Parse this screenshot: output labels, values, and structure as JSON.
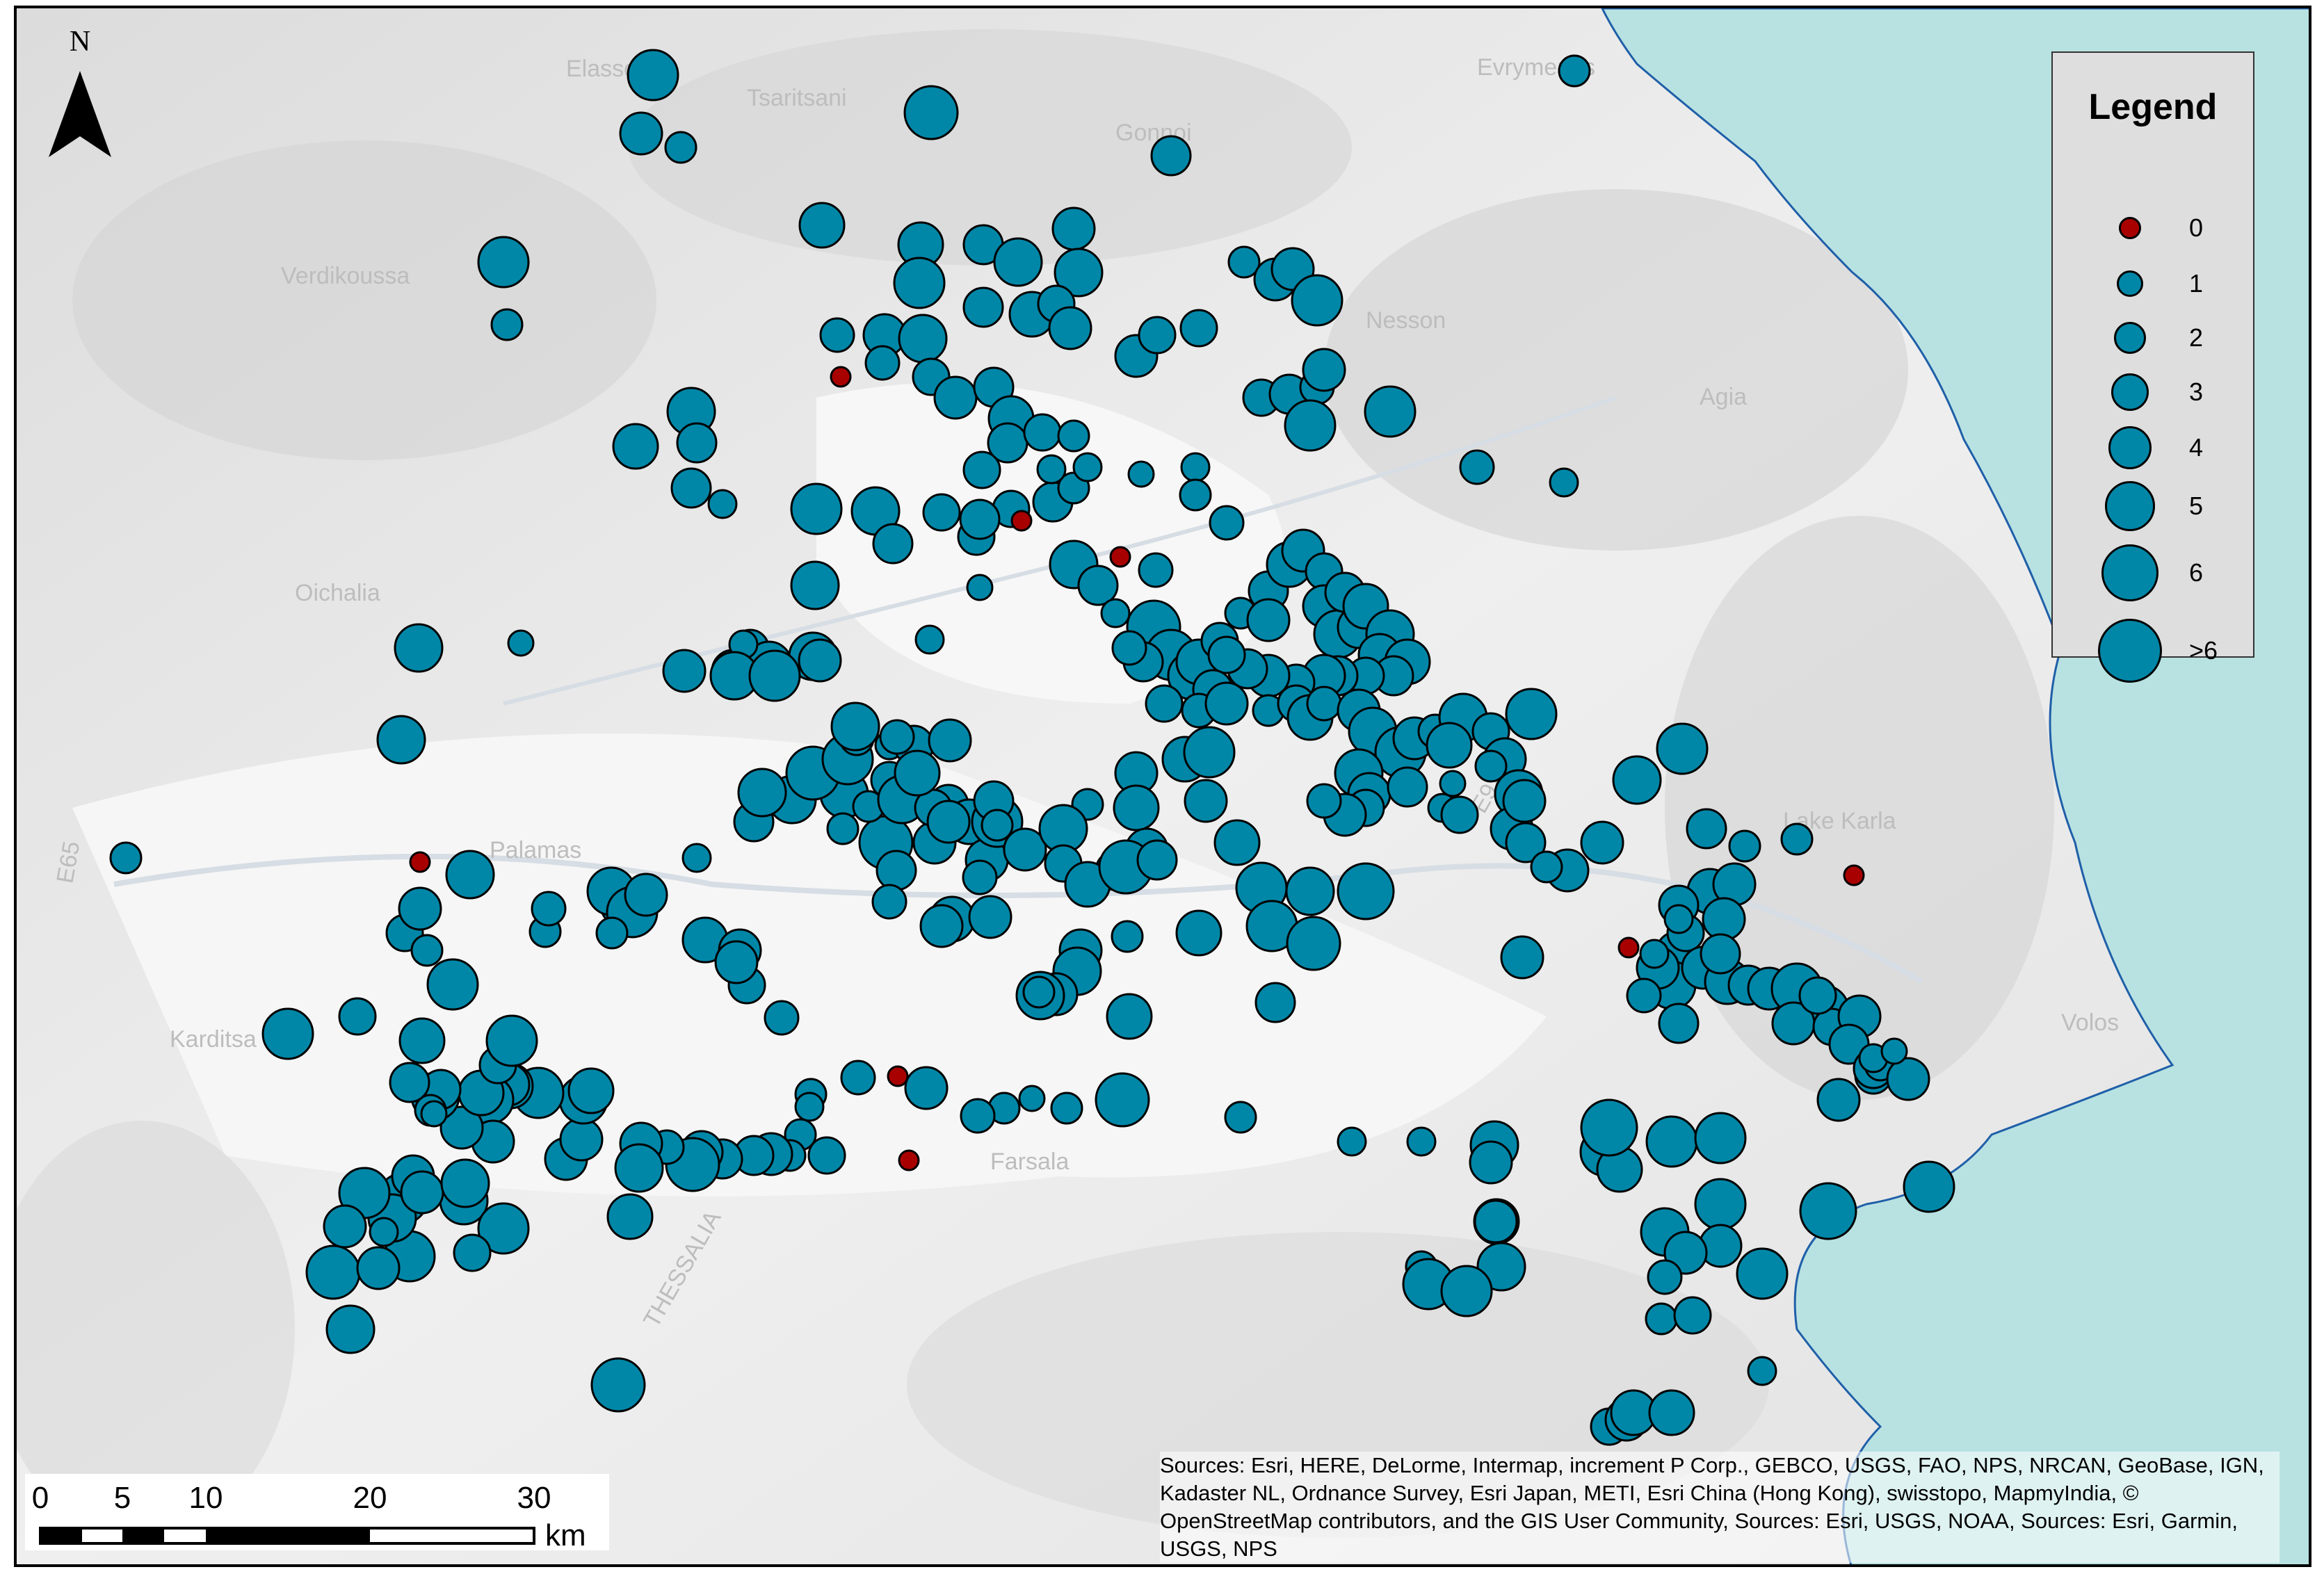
{
  "north_arrow": {
    "letter": "N"
  },
  "legend": {
    "title": "Legend",
    "items": [
      {
        "label": "0",
        "value": 0,
        "color": "#a80000"
      },
      {
        "label": "1",
        "value": 1,
        "color": "#0087a8"
      },
      {
        "label": "2",
        "value": 2,
        "color": "#0087a8"
      },
      {
        "label": "3",
        "value": 3,
        "color": "#0087a8"
      },
      {
        "label": "4",
        "value": 4,
        "color": "#0087a8"
      },
      {
        "label": "5",
        "value": 5,
        "color": "#0087a8"
      },
      {
        "label": "6",
        "value": 6,
        "color": "#0087a8"
      },
      {
        "label": ">6",
        "value": 7,
        "color": "#0087a8"
      }
    ]
  },
  "scale_bar": {
    "ticks": [
      "0",
      "5",
      "10",
      "20",
      "30"
    ],
    "tick_values": [
      0,
      5,
      10,
      20,
      30
    ],
    "unit": "km"
  },
  "attribution": "Sources: Esri, HERE, DeLorme, Intermap, increment P Corp., GEBCO, USGS, FAO, NPS, NRCAN, GeoBase, IGN, Kadaster NL, Ordnance Survey, Esri Japan, METI, Esri China (Hong Kong), swisstopo, MapmyIndia, © OpenStreetMap contributors, and the GIS User Community, Sources: Esri, USGS, NOAA, Sources: Esri, Garmin, USGS, NPS",
  "place_labels": [
    "Elassona",
    "Tsaritsani",
    "Gonnoi",
    "Evrymenes",
    "Verdikoussa",
    "Nesson",
    "Agia",
    "Oichalia",
    "Palamas",
    "Karditsa",
    "Farsala",
    "Volos",
    "Lake Karla",
    "THESSALIA",
    "E65",
    "E92"
  ],
  "colors": {
    "sea": "#b8e2e2",
    "land": "#e9e9e9",
    "symbol_fill": "#0087a8",
    "zero_fill": "#a80000",
    "outline": "#000000"
  }
}
